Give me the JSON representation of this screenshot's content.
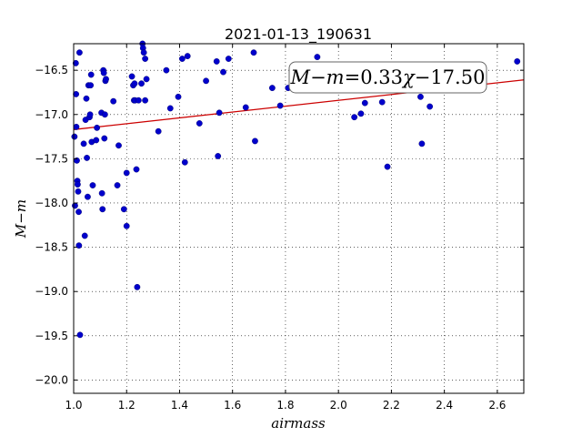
{
  "chart_data": {
    "type": "scatter",
    "title": "2021-01-13_190631",
    "xlabel": "airmass",
    "ylabel": "M−m",
    "xlim": [
      1.0,
      2.7
    ],
    "ylim": [
      -20.15,
      -16.2
    ],
    "x_ticks": [
      1.0,
      1.2,
      1.4,
      1.6,
      1.8,
      2.0,
      2.2,
      2.4,
      2.6
    ],
    "x_tick_labels": [
      "1.0",
      "1.2",
      "1.4",
      "1.6",
      "1.8",
      "2.0",
      "2.2",
      "2.4",
      "2.6"
    ],
    "y_ticks": [
      -16.5,
      -17.0,
      -17.5,
      -18.0,
      -18.5,
      -19.0,
      -19.5,
      -20.0
    ],
    "y_tick_labels": [
      "−16.5",
      "−17.0",
      "−17.5",
      "−18.0",
      "−18.5",
      "−19.0",
      "−19.5",
      "−20.0"
    ],
    "grid": true,
    "annotation": {
      "lhs_var1": "M",
      "minus": "−",
      "lhs_var2": "m",
      "equals": "=",
      "slope": "0.33",
      "var": "χ",
      "intercept_sign": "−",
      "intercept": "17.50"
    },
    "fit": {
      "slope": 0.33,
      "intercept": -17.5,
      "color": "#cc0000"
    },
    "point_color": "#0000cc",
    "points": [
      [
        1.003,
        -17.25
      ],
      [
        1.005,
        -18.03
      ],
      [
        1.008,
        -16.42
      ],
      [
        1.009,
        -16.77
      ],
      [
        1.01,
        -17.14
      ],
      [
        1.012,
        -17.52
      ],
      [
        1.014,
        -17.75
      ],
      [
        1.015,
        -17.79
      ],
      [
        1.017,
        -17.87
      ],
      [
        1.019,
        -18.1
      ],
      [
        1.02,
        -18.48
      ],
      [
        1.022,
        -16.3
      ],
      [
        1.024,
        -19.49
      ],
      [
        1.038,
        -17.33
      ],
      [
        1.042,
        -18.37
      ],
      [
        1.045,
        -17.06
      ],
      [
        1.048,
        -16.82
      ],
      [
        1.05,
        -17.49
      ],
      [
        1.053,
        -17.93
      ],
      [
        1.056,
        -16.67
      ],
      [
        1.06,
        -17.03
      ],
      [
        1.062,
        -17.0
      ],
      [
        1.064,
        -16.67
      ],
      [
        1.066,
        -16.55
      ],
      [
        1.068,
        -17.31
      ],
      [
        1.072,
        -17.8
      ],
      [
        1.085,
        -17.29
      ],
      [
        1.088,
        -17.15
      ],
      [
        1.105,
        -16.98
      ],
      [
        1.107,
        -17.89
      ],
      [
        1.109,
        -18.07
      ],
      [
        1.112,
        -16.5
      ],
      [
        1.114,
        -16.53
      ],
      [
        1.116,
        -17.27
      ],
      [
        1.118,
        -17.0
      ],
      [
        1.12,
        -16.62
      ],
      [
        1.122,
        -16.6
      ],
      [
        1.15,
        -16.85
      ],
      [
        1.165,
        -17.8
      ],
      [
        1.17,
        -17.35
      ],
      [
        1.19,
        -18.07
      ],
      [
        1.2,
        -18.26
      ],
      [
        1.2,
        -17.66
      ],
      [
        1.22,
        -16.57
      ],
      [
        1.225,
        -16.67
      ],
      [
        1.228,
        -16.84
      ],
      [
        1.23,
        -16.65
      ],
      [
        1.232,
        -16.84
      ],
      [
        1.237,
        -17.62
      ],
      [
        1.24,
        -18.95
      ],
      [
        1.245,
        -16.84
      ],
      [
        1.256,
        -16.65
      ],
      [
        1.26,
        -16.2
      ],
      [
        1.262,
        -16.25
      ],
      [
        1.265,
        -16.3
      ],
      [
        1.27,
        -16.37
      ],
      [
        1.27,
        -16.84
      ],
      [
        1.275,
        -16.6
      ],
      [
        1.32,
        -17.19
      ],
      [
        1.35,
        -16.5
      ],
      [
        1.365,
        -16.93
      ],
      [
        1.375,
        -16.18
      ],
      [
        1.395,
        -16.8
      ],
      [
        1.41,
        -16.37
      ],
      [
        1.42,
        -17.54
      ],
      [
        1.43,
        -16.34
      ],
      [
        1.475,
        -17.1
      ],
      [
        1.5,
        -16.62
      ],
      [
        1.54,
        -16.4
      ],
      [
        1.545,
        -17.47
      ],
      [
        1.55,
        -16.98
      ],
      [
        1.565,
        -16.52
      ],
      [
        1.585,
        -16.37
      ],
      [
        1.65,
        -16.92
      ],
      [
        1.68,
        -16.3
      ],
      [
        1.685,
        -17.3
      ],
      [
        1.75,
        -16.7
      ],
      [
        1.78,
        -16.9
      ],
      [
        1.81,
        -16.7
      ],
      [
        1.92,
        -16.35
      ],
      [
        2.06,
        -17.03
      ],
      [
        2.085,
        -16.99
      ],
      [
        2.1,
        -16.87
      ],
      [
        2.165,
        -16.86
      ],
      [
        2.185,
        -17.59
      ],
      [
        2.31,
        -16.8
      ],
      [
        2.315,
        -17.33
      ],
      [
        2.345,
        -16.91
      ],
      [
        2.675,
        -16.4
      ]
    ]
  }
}
